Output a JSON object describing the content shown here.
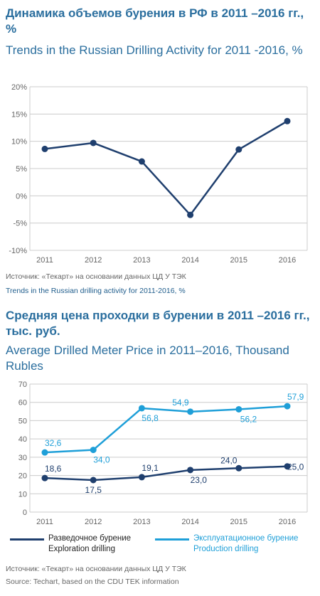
{
  "chart_data": [
    {
      "type": "line",
      "title": "Динамика объемов бурения в РФ в 2011 –2016 гг., %",
      "subtitle": "Trends in the Russian Drilling Activity for 2011 -2016, %",
      "categories": [
        "2011",
        "2012",
        "2013",
        "2014",
        "2015",
        "2016"
      ],
      "series": [
        {
          "values": [
            8.6,
            9.7,
            6.3,
            -3.5,
            8.5,
            13.7
          ]
        }
      ],
      "ylim": [
        -10,
        20
      ],
      "yticks": [
        "20%",
        "15%",
        "10%",
        "5%",
        "0%",
        "-5%",
        "-10%"
      ],
      "grid": true,
      "color": "#1f3f6e",
      "source_ru": "Источник: «Текарт» на  основании данных ЦД У ТЭК",
      "source_en": "Trends in the Russian drilling activity for 2011-2016, %"
    },
    {
      "type": "line",
      "title": "Средняя цена проходки в бурении в 2011 –2016 гг., тыс. руб.",
      "subtitle": "Average Drilled Meter Price in 2011–2016, Thousand Rubles",
      "categories": [
        "2011",
        "2012",
        "2013",
        "2014",
        "2015",
        "2016"
      ],
      "series": [
        {
          "name": "Разведочное бурение Exploration drilling",
          "name_ru": "Разведочное бурение",
          "name_en": "Exploration drilling",
          "values": [
            18.6,
            17.5,
            19.1,
            23.0,
            24.0,
            25.0
          ],
          "labels": [
            "18,6",
            "17,5",
            "19,1",
            "23,0",
            "24,0",
            "25,0"
          ],
          "color": "#1f3f6e"
        },
        {
          "name": "Эксплуатационное бурение Production drilling",
          "name_ru": "Эксплуатационное бурение",
          "name_en": "Production drilling",
          "values": [
            32.6,
            34.0,
            56.8,
            54.9,
            56.2,
            57.9
          ],
          "labels": [
            "32,6",
            "34,0",
            "56,8",
            "54,9",
            "56,2",
            "57,9"
          ],
          "color": "#1e9fd8"
        }
      ],
      "ylim": [
        0,
        70
      ],
      "yticks": [
        "70",
        "60",
        "50",
        "40",
        "30",
        "20",
        "10",
        "0"
      ],
      "grid": true,
      "legend": "bottom",
      "source_ru": "Источник: «Текарт» на  основании данных ЦД У ТЭК",
      "source_en": "Source: Techart, based on the CDU TEK information"
    }
  ]
}
